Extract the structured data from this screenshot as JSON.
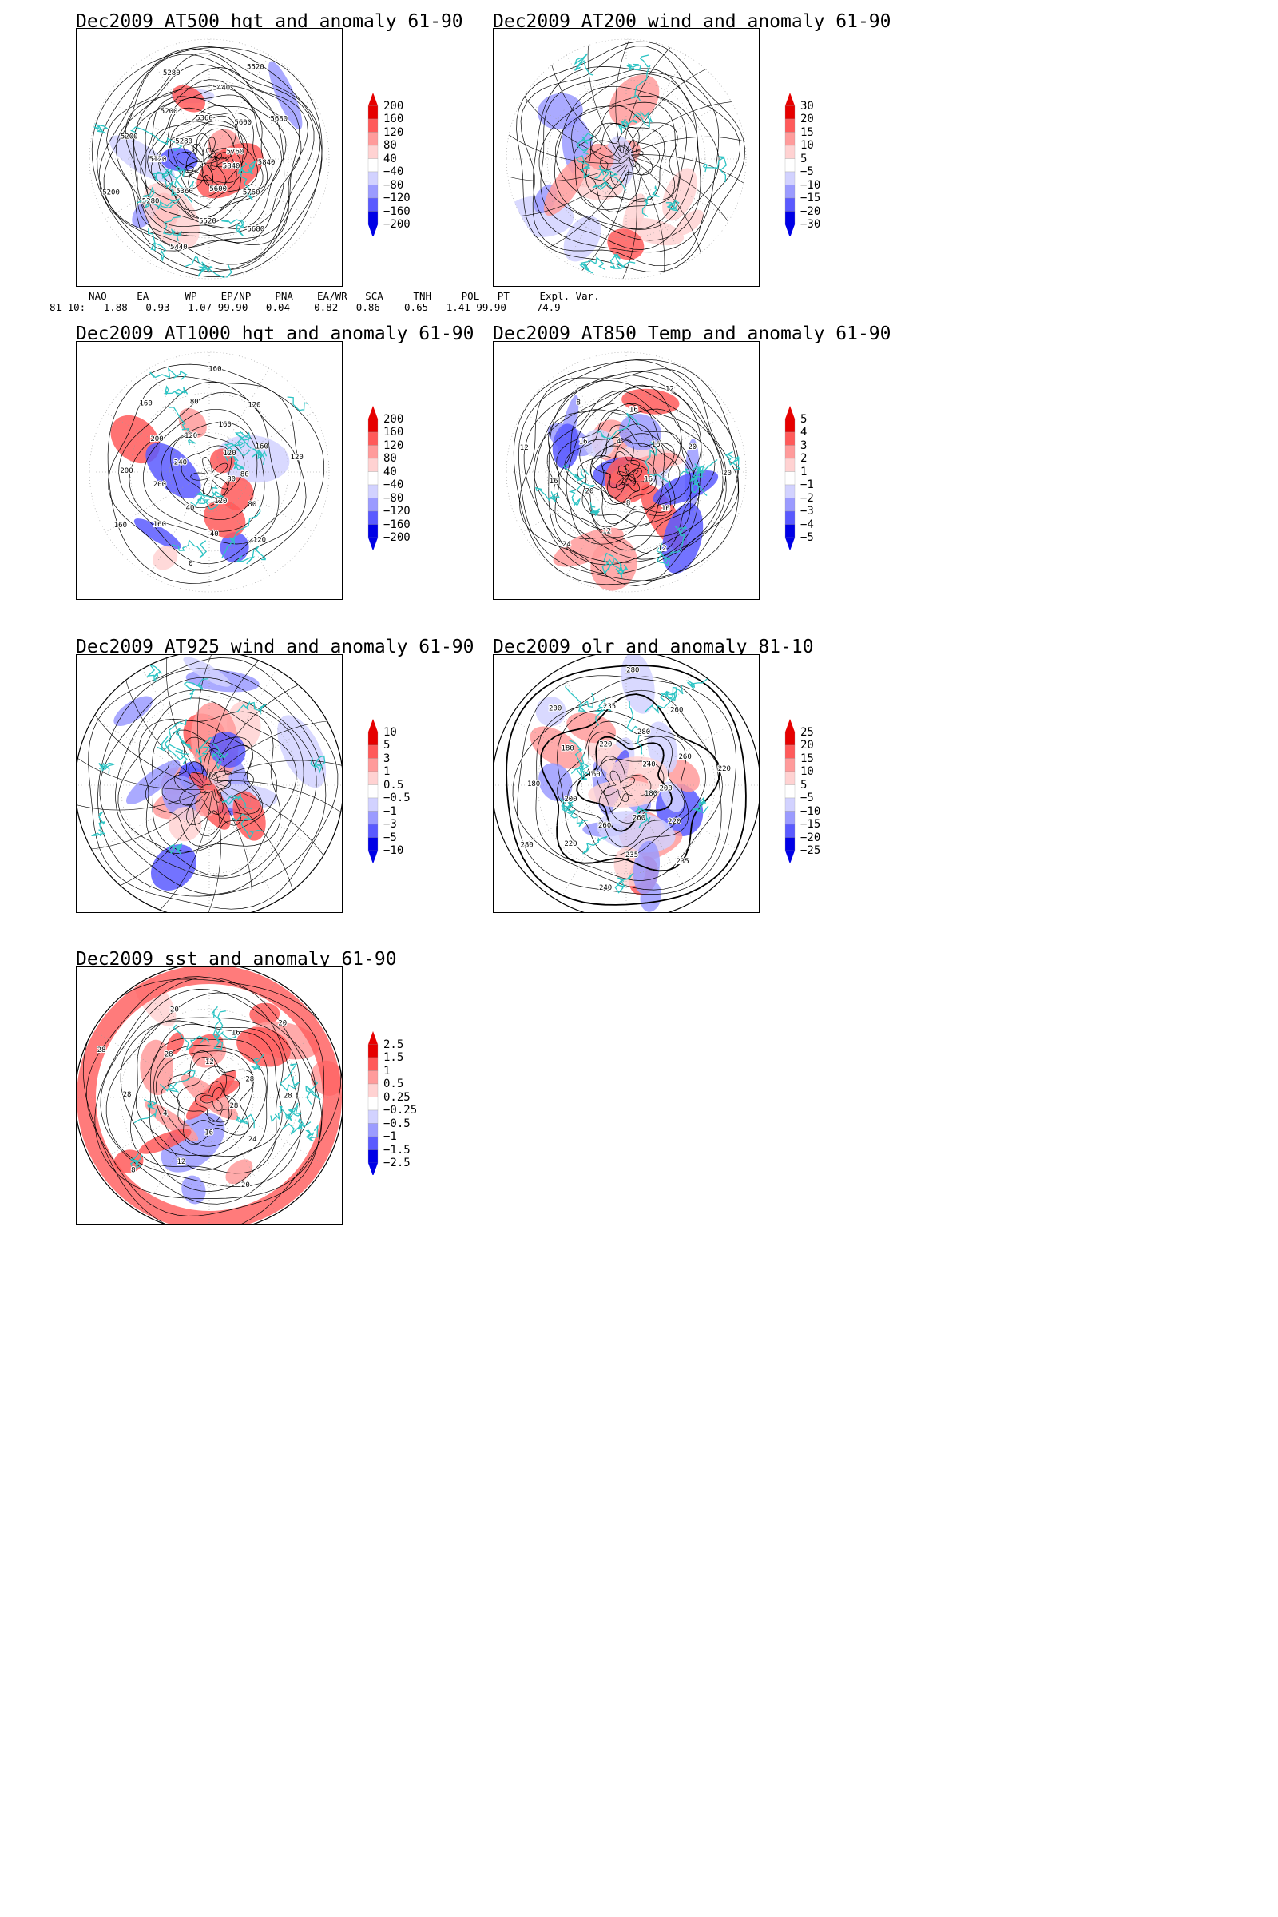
{
  "palette": {
    "red_strong": "#e60000",
    "red_mid": "#ff5a5a",
    "red_light": "#ff9b9b",
    "red_pale": "#ffd2d2",
    "white": "#ffffff",
    "blue_pale": "#d2d2ff",
    "blue_light": "#9b9bff",
    "blue_mid": "#5a5aff",
    "blue_strong": "#0000e6",
    "coast": "#2ec4c4",
    "contour": "#000000"
  },
  "panels": [
    {
      "title": "Dec2009 AT500 hgt and anomaly 61-90",
      "colorbar_labels": [
        "200",
        "160",
        "120",
        "80",
        "40",
        "−40",
        "−80",
        "−120",
        "−160",
        "−200"
      ],
      "contour_labels": [
        "5840",
        "5760",
        "5680",
        "5600",
        "5520",
        "5440",
        "5360",
        "5280",
        "5200",
        "5120",
        "5200",
        "5280",
        "5200",
        "5280",
        "5360",
        "5440",
        "5520",
        "5600",
        "5680",
        "5760",
        "5840"
      ],
      "index_header": "  NAO     EA      WP    EP/NP    PNA    EA/WR   SCA     TNH     POL   PT     Expl. Var.",
      "index_values": "81-10:  -1.88   0.93  -1.07-99.90   0.04   -0.82   0.86   -0.65  -1.41-99.90     74.9"
    },
    {
      "title": "Dec2009 AT200 wind and anomaly 61-90",
      "colorbar_labels": [
        "30",
        "20",
        "15",
        "10",
        "5",
        "−5",
        "−10",
        "−15",
        "−20",
        "−30"
      ],
      "contour_labels": []
    },
    {
      "title": "Dec2009 AT1000 hgt and anomaly 61-90",
      "colorbar_labels": [
        "200",
        "160",
        "120",
        "80",
        "40",
        "−40",
        "−80",
        "−120",
        "−160",
        "−200"
      ],
      "contour_labels": [
        "80",
        "80",
        "120",
        "120",
        "40",
        "0",
        "40",
        "160",
        "160",
        "200",
        "200",
        "240",
        "200",
        "160",
        "120",
        "80",
        "160",
        "160",
        "120",
        "120",
        "160",
        "120",
        "80"
      ]
    },
    {
      "title": "Dec2009 AT850 Temp and anomaly 61-90",
      "colorbar_labels": [
        "5",
        "4",
        "3",
        "2",
        "1",
        "−1",
        "−2",
        "−3",
        "−4",
        "−5"
      ],
      "contour_labels": [
        "16",
        "16",
        "12",
        "8",
        "12",
        "24",
        "20",
        "16",
        "12",
        "16",
        "8",
        "4",
        "16",
        "12",
        "16",
        "20",
        "20"
      ]
    },
    {
      "title": "Dec2009 AT925 wind and anomaly 61-90",
      "colorbar_labels": [
        "10",
        "5",
        "3",
        "1",
        "0.5",
        "−0.5",
        "−1",
        "−3",
        "−5",
        "−10"
      ],
      "contour_labels": []
    },
    {
      "title": "Dec2009 olr and anomaly 81-10",
      "colorbar_labels": [
        "25",
        "20",
        "15",
        "10",
        "5",
        "−5",
        "−10",
        "−15",
        "−20",
        "−25"
      ],
      "contour_labels": [
        "180",
        "220",
        "235",
        "260",
        "235",
        "240",
        "260",
        "220",
        "280",
        "200",
        "180",
        "160",
        "180",
        "200",
        "220",
        "235",
        "280",
        "280",
        "260",
        "240",
        "260",
        "220",
        "200"
      ]
    },
    {
      "title": "Dec2009 sst and anomaly 61-90",
      "colorbar_labels": [
        "2.5",
        "1.5",
        "1",
        "0.5",
        "0.25",
        "−0.25",
        "−0.5",
        "−1",
        "−1.5",
        "−2.5"
      ],
      "contour_labels": [
        "28",
        "24",
        "20",
        "16",
        "12",
        "8",
        "4",
        "28",
        "28",
        "28",
        "20",
        "12",
        "16",
        "20",
        "28",
        "28"
      ]
    }
  ]
}
